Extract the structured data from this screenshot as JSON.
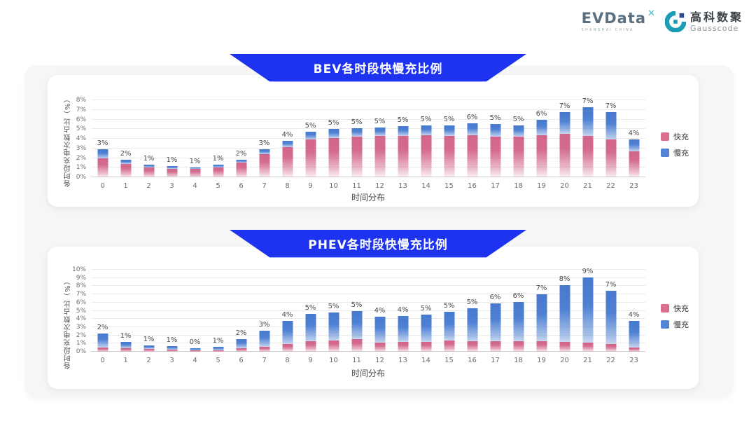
{
  "header": {
    "evdata": {
      "name": "EVData",
      "mark": "✕",
      "tagline": "SHANGHAI CHINA"
    },
    "gausscode": {
      "cn": "高科数聚",
      "en": "Gausscode"
    }
  },
  "colors": {
    "banner_blue": "#1e33f0",
    "fast_pink": "#dd6f8e",
    "slow_blue": "#5583d6",
    "gausscode_teal": "#1a9db4",
    "gausscode_navy": "#2b4a8b"
  },
  "chart_data": [
    {
      "id": "bev",
      "type": "bar",
      "stacked": true,
      "title": "BEV各时段快慢充比例",
      "xlabel": "时间分布",
      "ylabel": "各时段充电次数占比（%）",
      "ylim": [
        0,
        8
      ],
      "ytick_step": 1,
      "grid": true,
      "legend_position": "right",
      "categories": [
        "0",
        "1",
        "2",
        "3",
        "4",
        "5",
        "6",
        "7",
        "8",
        "9",
        "10",
        "11",
        "12",
        "13",
        "14",
        "15",
        "16",
        "17",
        "18",
        "19",
        "20",
        "21",
        "22",
        "23"
      ],
      "bar_labels": [
        "3%",
        "2%",
        "1%",
        "1%",
        "1%",
        "1%",
        "2%",
        "3%",
        "4%",
        "5%",
        "5%",
        "5%",
        "5%",
        "5%",
        "5%",
        "5%",
        "6%",
        "5%",
        "5%",
        "6%",
        "7%",
        "7%",
        "7%",
        "4%"
      ],
      "series": [
        {
          "name": "快充",
          "color": "#dd6f8e",
          "values": [
            2.0,
            1.35,
            1.0,
            0.9,
            0.85,
            1.05,
            1.5,
            2.4,
            3.1,
            3.9,
            4.1,
            4.2,
            4.3,
            4.3,
            4.4,
            4.3,
            4.4,
            4.2,
            4.2,
            4.4,
            4.5,
            4.3,
            3.9,
            2.7
          ]
        },
        {
          "name": "慢充",
          "color": "#5583d6",
          "values": [
            0.9,
            0.45,
            0.3,
            0.25,
            0.15,
            0.25,
            0.35,
            0.5,
            0.7,
            0.8,
            0.9,
            0.9,
            0.9,
            1.0,
            1.0,
            1.1,
            1.2,
            1.3,
            1.2,
            1.6,
            2.3,
            3.0,
            2.9,
            1.2
          ]
        }
      ]
    },
    {
      "id": "phev",
      "type": "bar",
      "stacked": true,
      "title": "PHEV各时段快慢充比例",
      "xlabel": "时间分布",
      "ylabel": "各时段充电次数占比（%）",
      "ylim": [
        0,
        10
      ],
      "ytick_step": 1,
      "grid": true,
      "legend_position": "right",
      "categories": [
        "0",
        "1",
        "2",
        "3",
        "4",
        "5",
        "6",
        "7",
        "8",
        "9",
        "10",
        "11",
        "12",
        "13",
        "14",
        "15",
        "16",
        "17",
        "18",
        "19",
        "20",
        "21",
        "22",
        "23"
      ],
      "bar_labels": [
        "2%",
        "1%",
        "1%",
        "1%",
        "0%",
        "1%",
        "2%",
        "3%",
        "4%",
        "5%",
        "5%",
        "5%",
        "4%",
        "4%",
        "5%",
        "5%",
        "5%",
        "6%",
        "6%",
        "7%",
        "8%",
        "9%",
        "7%",
        "4%"
      ],
      "series": [
        {
          "name": "快充",
          "color": "#dd6f8e",
          "values": [
            0.5,
            0.4,
            0.3,
            0.25,
            0.15,
            0.2,
            0.4,
            0.6,
            0.9,
            1.3,
            1.4,
            1.5,
            1.1,
            1.2,
            1.2,
            1.4,
            1.3,
            1.3,
            1.3,
            1.3,
            1.2,
            1.1,
            0.9,
            0.5
          ]
        },
        {
          "name": "慢充",
          "color": "#5583d6",
          "values": [
            1.7,
            0.8,
            0.5,
            0.4,
            0.3,
            0.4,
            1.1,
            2.0,
            2.9,
            3.3,
            3.4,
            3.5,
            3.2,
            3.2,
            3.3,
            3.5,
            4.0,
            4.6,
            4.8,
            5.7,
            6.9,
            8.0,
            6.5,
            3.3
          ]
        }
      ]
    }
  ]
}
